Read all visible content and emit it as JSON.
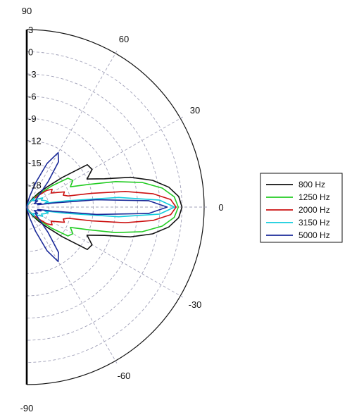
{
  "chart_data": {
    "type": "line",
    "polar": true,
    "title": "",
    "angle_unit": "degrees",
    "angle_range": [
      -90,
      90
    ],
    "angle_ticks": [
      "90",
      "60",
      "30",
      "0",
      "-30",
      "-60",
      "-90"
    ],
    "radial_unit": "dB",
    "radial_range": [
      -21,
      3
    ],
    "radial_ticks": [
      "3",
      "0",
      "-3",
      "-6",
      "-9",
      "-12",
      "-15",
      "-18"
    ],
    "grid": true,
    "legend_position": "right",
    "series": [
      {
        "name": "800 Hz",
        "color": "#111111",
        "theta": [
          0,
          4,
          8,
          12,
          16,
          20,
          25,
          30,
          35,
          40,
          45,
          50,
          55,
          60,
          65,
          70,
          80,
          90,
          -4,
          -8,
          -12,
          -16,
          -20,
          -25,
          -30,
          -35,
          -40,
          -45,
          -50,
          -55,
          -60,
          -65,
          -70,
          -80,
          -90
        ],
        "r": [
          0,
          -0.4,
          -1.6,
          -3.6,
          -6.4,
          -9.8,
          -12,
          -10.8,
          -11,
          -14.8,
          -17.2,
          -18.5,
          -19.5,
          -20.2,
          -20.6,
          -20.8,
          -21,
          -21,
          -0.4,
          -1.6,
          -3.6,
          -6.4,
          -9.8,
          -12,
          -10.8,
          -11,
          -14.8,
          -17.2,
          -18.5,
          -19.5,
          -20.2,
          -20.6,
          -20.8,
          -21,
          -21
        ]
      },
      {
        "name": "1250 Hz",
        "color": "#22cc22",
        "theta": [
          0,
          4,
          8,
          12,
          16,
          20,
          25,
          30,
          35,
          40,
          45,
          50,
          55,
          60,
          65,
          70,
          80,
          90,
          -4,
          -8,
          -12,
          -16,
          -20,
          -25,
          -30,
          -35,
          -40,
          -45,
          -50,
          -55,
          -60,
          -65,
          -70,
          -80,
          -90
        ],
        "r": [
          -0.5,
          -1,
          -2.5,
          -5,
          -8.5,
          -12,
          -14.5,
          -13.8,
          -14.2,
          -16.5,
          -18.2,
          -19.2,
          -20,
          -20.4,
          -20.7,
          -20.9,
          -21,
          -21,
          -1,
          -2.5,
          -5,
          -8.5,
          -12,
          -14.5,
          -13.8,
          -14.2,
          -16.5,
          -18.2,
          -19.2,
          -20,
          -20.4,
          -20.7,
          -20.9,
          -21,
          -21
        ]
      },
      {
        "name": "2000 Hz",
        "color": "#cc1111",
        "theta": [
          0,
          3,
          6,
          9,
          12,
          15,
          18,
          22,
          26,
          30,
          35,
          40,
          45,
          50,
          55,
          60,
          70,
          80,
          90,
          -3,
          -6,
          -9,
          -12,
          -15,
          -18,
          -22,
          -26,
          -30,
          -35,
          -40,
          -45,
          -50,
          -55,
          -60,
          -70,
          -80,
          -90
        ],
        "r": [
          -0.8,
          -1.5,
          -3.8,
          -7.5,
          -12,
          -15.2,
          -15.8,
          -15.5,
          -16.5,
          -17.2,
          -16.8,
          -17.5,
          -18.8,
          -19.6,
          -20.2,
          -20.6,
          -20.9,
          -21,
          -21,
          -1.5,
          -3.8,
          -7.5,
          -12,
          -15.2,
          -15.8,
          -15.5,
          -16.5,
          -17.2,
          -16.8,
          -17.5,
          -18.8,
          -19.6,
          -20.2,
          -20.6,
          -20.9,
          -21,
          -21
        ]
      },
      {
        "name": "3150 Hz",
        "color": "#11ccdd",
        "theta": [
          0,
          3,
          6,
          9,
          12,
          15,
          20,
          25,
          30,
          35,
          40,
          45,
          50,
          55,
          60,
          70,
          80,
          90,
          -3,
          -6,
          -9,
          -12,
          -15,
          -20,
          -25,
          -30,
          -35,
          -40,
          -45,
          -50,
          -55,
          -60,
          -70,
          -80,
          -90
        ],
        "r": [
          -1,
          -3,
          -8.5,
          -15.5,
          -18.5,
          -18,
          -18.4,
          -18.8,
          -18.5,
          -19,
          -19.6,
          -19.8,
          -19.4,
          -20,
          -20.4,
          -20.8,
          -21,
          -21,
          -3,
          -8.5,
          -15.5,
          -18.5,
          -18,
          -18.4,
          -18.8,
          -18.5,
          -19,
          -19.6,
          -19.8,
          -19.4,
          -20,
          -20.4,
          -20.8,
          -21,
          -21
        ]
      },
      {
        "name": "5000 Hz",
        "color": "#1a2a99",
        "theta": [
          0,
          3,
          6,
          9,
          12,
          15,
          20,
          25,
          30,
          35,
          40,
          45,
          50,
          55,
          60,
          65,
          70,
          75,
          80,
          90,
          -3,
          -6,
          -9,
          -12,
          -15,
          -20,
          -25,
          -30,
          -35,
          -40,
          -45,
          -50,
          -55,
          -60,
          -65,
          -70,
          -75,
          -80,
          -90
        ],
        "r": [
          -2,
          -4.5,
          -11.5,
          -17.5,
          -19.5,
          -19,
          -19.6,
          -19.9,
          -19.3,
          -19.6,
          -19.3,
          -18.5,
          -16.5,
          -13.5,
          -12.5,
          -14.5,
          -17.5,
          -19.5,
          -20.6,
          -21,
          -4.5,
          -11.5,
          -17.5,
          -19.5,
          -19,
          -19.6,
          -19.9,
          -19.3,
          -19.6,
          -19.3,
          -18.5,
          -16.5,
          -13.5,
          -12.5,
          -14.5,
          -17.5,
          -19.5,
          -20.6,
          -21
        ]
      }
    ]
  }
}
